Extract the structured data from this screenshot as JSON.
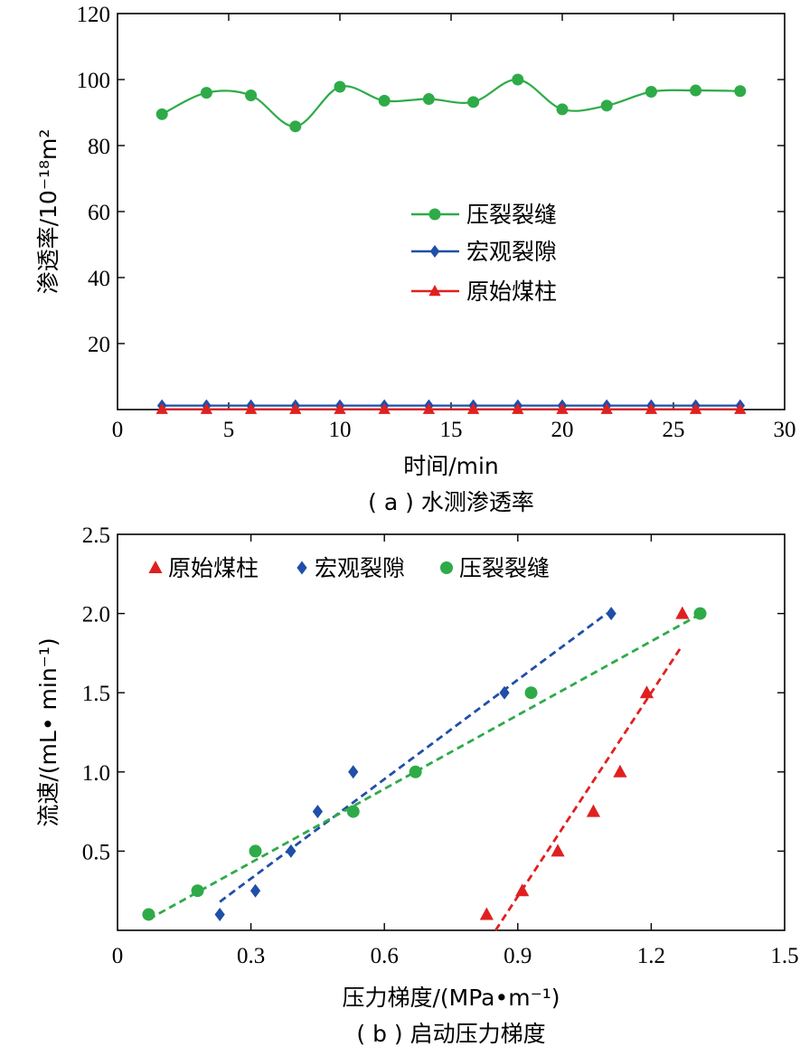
{
  "colors": {
    "green": "#2eab48",
    "blue": "#1f4fa8",
    "red": "#e02020"
  },
  "chart_data": [
    {
      "type": "line",
      "caption": "( a ) 水测渗透率",
      "xlabel": "时间/min",
      "ylabel": "渗透率/10⁻¹⁸m²",
      "xlim": [
        0,
        30
      ],
      "ylim": [
        0,
        120
      ],
      "xticks": [
        0,
        5,
        10,
        15,
        20,
        25,
        30
      ],
      "yticks": [
        20,
        40,
        60,
        80,
        100,
        120
      ],
      "x": [
        2,
        4,
        6,
        8,
        10,
        12,
        14,
        16,
        18,
        20,
        22,
        24,
        26,
        28
      ],
      "series": [
        {
          "name": "压裂裂缝",
          "color": "green",
          "marker": "circle",
          "values": [
            89.5,
            96,
            95.2,
            85.8,
            97.8,
            93.6,
            94.1,
            93.2,
            100,
            91,
            92.1,
            96.3,
            96.7,
            96.5
          ]
        },
        {
          "name": "宏观裂隙",
          "color": "blue",
          "marker": "diamond",
          "values": [
            1.2,
            1.2,
            1.2,
            1.2,
            1.2,
            1.2,
            1.2,
            1.2,
            1.2,
            1.2,
            1.2,
            1.2,
            1.2,
            1.2
          ]
        },
        {
          "name": "原始煤柱",
          "color": "red",
          "marker": "triangle",
          "values": [
            0.1,
            0.1,
            0.1,
            0.1,
            0.1,
            0.1,
            0.1,
            0.1,
            0.1,
            0.1,
            0.1,
            0.1,
            0.1,
            0.1
          ]
        }
      ],
      "legend_position": "center",
      "grid": false
    },
    {
      "type": "scatter",
      "caption": "( b ) 启动压力梯度",
      "xlabel": "压力梯度/(MPa•m⁻¹)",
      "ylabel": "流速/(mL• min⁻¹)",
      "xlim": [
        0,
        1.5
      ],
      "ylim": [
        0,
        2.5
      ],
      "xticks": [
        "0",
        "0.3",
        "0.6",
        "0.9",
        "1.2",
        "1.5"
      ],
      "yticks": [
        "0.5",
        "1.0",
        "1.5",
        "2.0",
        "2.5"
      ],
      "series": [
        {
          "name": "原始煤柱",
          "color": "red",
          "marker": "triangle",
          "points": [
            [
              0.83,
              0.1
            ],
            [
              0.91,
              0.25
            ],
            [
              0.99,
              0.5
            ],
            [
              1.07,
              0.75
            ],
            [
              1.13,
              1.0
            ],
            [
              1.19,
              1.5
            ],
            [
              1.27,
              2.0
            ]
          ],
          "fit": [
            [
              0.85,
              0.0
            ],
            [
              1.27,
              1.8
            ]
          ]
        },
        {
          "name": "宏观裂隙",
          "color": "blue",
          "marker": "diamond",
          "points": [
            [
              0.23,
              0.1
            ],
            [
              0.31,
              0.25
            ],
            [
              0.39,
              0.5
            ],
            [
              0.45,
              0.75
            ],
            [
              0.53,
              1.0
            ],
            [
              0.87,
              1.5
            ],
            [
              1.11,
              2.0
            ]
          ],
          "fit": [
            [
              0.23,
              0.18
            ],
            [
              1.1,
              2.0
            ]
          ]
        },
        {
          "name": "压裂裂缝",
          "color": "green",
          "marker": "circle",
          "points": [
            [
              0.07,
              0.1
            ],
            [
              0.18,
              0.25
            ],
            [
              0.31,
              0.5
            ],
            [
              0.53,
              0.75
            ],
            [
              0.67,
              1.0
            ],
            [
              0.93,
              1.5
            ],
            [
              1.31,
              2.0
            ]
          ],
          "fit": [
            [
              0.07,
              0.07
            ],
            [
              1.3,
              1.98
            ]
          ]
        }
      ],
      "legend_position": "top-left",
      "grid": false
    }
  ]
}
